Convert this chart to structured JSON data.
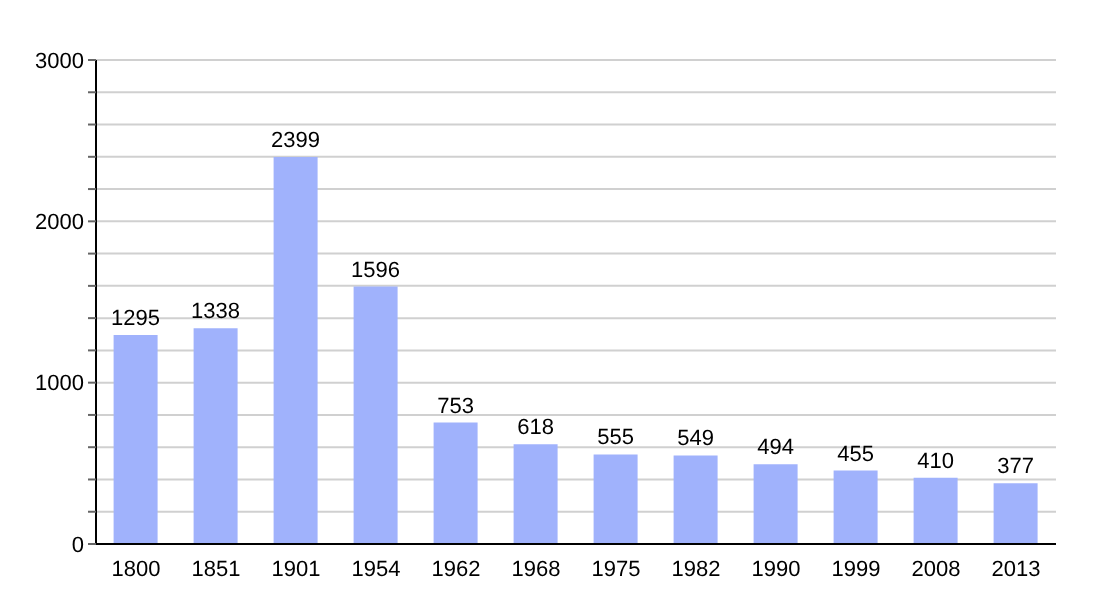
{
  "chart_data": {
    "type": "bar",
    "categories": [
      "1800",
      "1851",
      "1901",
      "1954",
      "1962",
      "1968",
      "1975",
      "1982",
      "1990",
      "1999",
      "2008",
      "2013"
    ],
    "values": [
      1295,
      1338,
      2399,
      1596,
      753,
      618,
      555,
      549,
      494,
      455,
      410,
      377
    ],
    "color": "#a0b2fc",
    "ylim": [
      0,
      3000
    ],
    "yticks": [
      0,
      {
        "value": 200,
        "label": null
      },
      {
        "value": 400,
        "label": null
      },
      {
        "value": 600,
        "label": null
      },
      {
        "value": 800,
        "label": null
      },
      1000,
      {
        "value": 1200,
        "label": null
      },
      {
        "value": 1400,
        "label": null
      },
      {
        "value": 1600,
        "label": null
      },
      {
        "value": 1800,
        "label": null
      },
      2000,
      {
        "value": 2200,
        "label": null
      },
      {
        "value": 2400,
        "label": null
      },
      {
        "value": 2600,
        "label": null
      },
      {
        "value": 2800,
        "label": null
      },
      3000
    ],
    "grid": "y",
    "data_labels": true
  }
}
